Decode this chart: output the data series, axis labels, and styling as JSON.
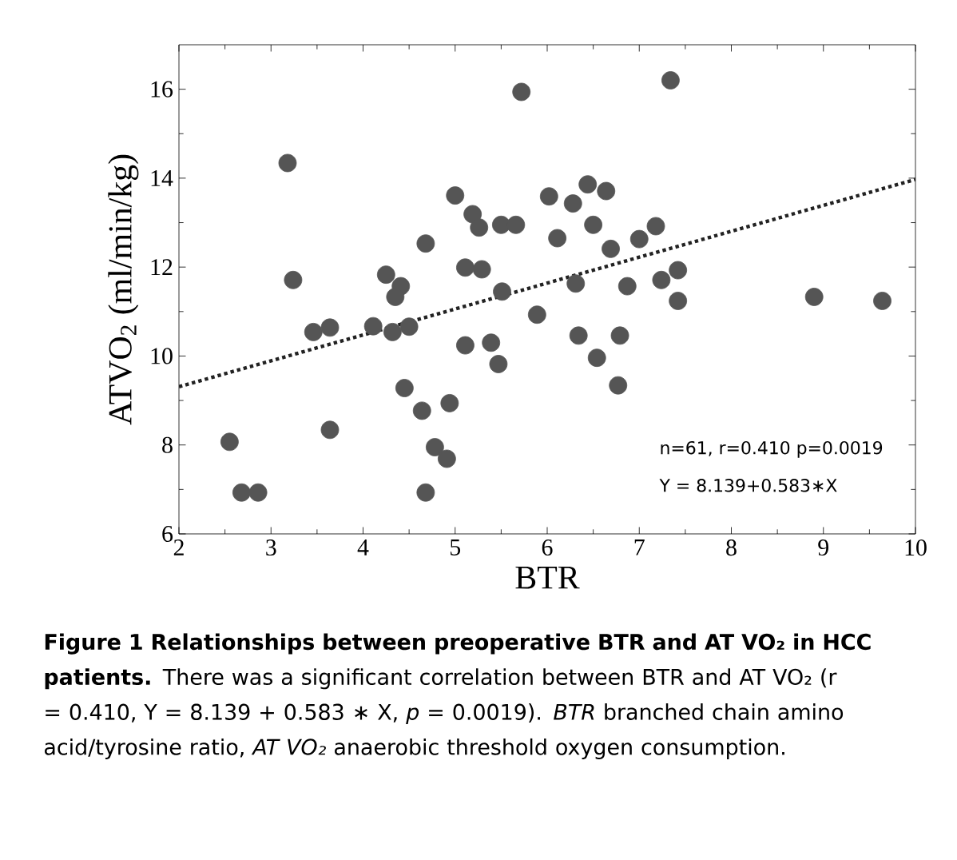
{
  "chart_data": {
    "type": "scatter",
    "xlabel": "BTR",
    "ylabel": "ATVO$_{2}$  (ml/min/kg)",
    "xlim": [
      2,
      10
    ],
    "ylim": [
      6,
      17
    ],
    "xticks": [
      2,
      3,
      4,
      5,
      6,
      7,
      8,
      9,
      10
    ],
    "yticks": [
      6,
      8,
      10,
      12,
      14,
      16
    ],
    "grid": false,
    "series": [
      {
        "color": "#555555",
        "marker": "circle",
        "x": [
          5.72,
          3.18,
          5.0,
          6.02,
          5.19,
          5.26,
          5.5,
          5.66,
          6.11,
          4.68,
          5.11,
          5.29,
          4.25,
          4.41,
          4.35,
          3.24,
          5.51,
          5.89,
          3.46,
          3.64,
          4.11,
          4.32,
          4.5,
          5.11,
          5.39,
          5.47,
          4.45,
          4.64,
          4.94,
          3.64,
          2.55,
          4.78,
          4.91,
          2.68,
          2.86,
          4.68,
          7.34,
          6.44,
          6.64,
          6.28,
          6.5,
          7.18,
          7.0,
          6.69,
          6.31,
          6.87,
          7.42,
          7.24,
          7.42,
          8.9,
          9.64,
          6.34,
          6.79,
          6.54,
          6.77
        ],
        "values": [
          15.94,
          14.34,
          13.61,
          13.59,
          13.19,
          12.89,
          12.95,
          12.95,
          12.65,
          12.53,
          11.99,
          11.95,
          11.83,
          11.57,
          11.33,
          11.71,
          11.45,
          10.93,
          10.54,
          10.64,
          10.67,
          10.54,
          10.66,
          10.24,
          10.3,
          9.82,
          9.28,
          8.77,
          8.94,
          8.34,
          8.07,
          7.95,
          7.69,
          6.93,
          6.93,
          6.93,
          16.2,
          13.86,
          13.71,
          13.43,
          12.95,
          12.92,
          12.63,
          12.41,
          11.63,
          11.57,
          11.93,
          11.71,
          11.24,
          11.33,
          11.24,
          10.46,
          10.46,
          9.96,
          9.34
        ]
      },
      {
        "type": "line",
        "color": "#222222",
        "line_style": "dotted",
        "marker": "none",
        "x": [
          2,
          10
        ],
        "values": [
          9.31,
          13.97
        ]
      }
    ],
    "annotations": [
      "n=61, r=0.410    p=0.0019",
      "Y = 8.139+0.583∗X",
      "**Figure 1 Relationships between preoperative BTR and AT VO₂ in HCC patients.** There was a significant correlation between BTR and AT VO₂ (r = 0.410, Y = 8.139 + 0.583 ∗ X, *p* = 0.0019). *BTR* branched chain amino acid/tyrosine ratio, *AT VO₂* anaerobic threshold oxygen consumption."
    ]
  }
}
